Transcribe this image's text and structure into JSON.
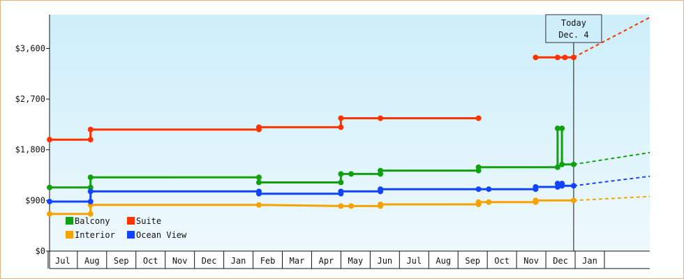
{
  "chart_data": {
    "type": "line",
    "title": "",
    "xlabel": "",
    "ylabel": "",
    "ylim": [
      0,
      4200
    ],
    "yticks": [
      {
        "value": 0,
        "label": "$0"
      },
      {
        "value": 900,
        "label": "$900"
      },
      {
        "value": 1800,
        "label": "$1,800"
      },
      {
        "value": 2700,
        "label": "$2,700"
      },
      {
        "value": 3600,
        "label": "$3,600"
      }
    ],
    "months": [
      "Jul",
      "Aug",
      "Sep",
      "Oct",
      "Nov",
      "Dec",
      "Jan",
      "Feb",
      "Mar",
      "Apr",
      "May",
      "Jun",
      "Jul",
      "Aug",
      "Sep",
      "Oct",
      "Nov",
      "Dec",
      "Jan"
    ],
    "today": {
      "line1": "Today",
      "line2": "Dec. 4",
      "x": 17.45
    },
    "xrange": [
      -0.45,
      20.05
    ],
    "grid": "none",
    "legend_position": "bottom-left",
    "colors": {
      "background_top": "#cdeefa",
      "background_bottom": "#eef9fd",
      "frame": "#e3b27e",
      "axis": "#111111"
    },
    "series": [
      {
        "name": "Balcony",
        "color": "#10a010",
        "points": [
          [
            -0.45,
            1130
          ],
          [
            0.95,
            1130
          ],
          [
            0.95,
            1310
          ],
          [
            6.7,
            1310
          ],
          [
            6.7,
            1220
          ],
          [
            9.5,
            1220
          ],
          [
            9.5,
            1370
          ],
          [
            9.85,
            1370
          ],
          [
            10.85,
            1370
          ],
          [
            10.85,
            1430
          ],
          [
            14.2,
            1430
          ],
          [
            14.2,
            1490
          ],
          [
            16.9,
            1490
          ],
          [
            16.9,
            2180
          ],
          [
            17.05,
            2180
          ],
          [
            17.05,
            1540
          ],
          [
            17.45,
            1540
          ]
        ],
        "projection": [
          [
            17.45,
            1540
          ],
          [
            20.05,
            1750
          ]
        ]
      },
      {
        "name": "Suite",
        "color": "#ff3300",
        "points": [
          [
            -0.45,
            1980
          ],
          [
            0.95,
            1980
          ],
          [
            0.95,
            2160
          ],
          [
            6.7,
            2160
          ],
          [
            6.7,
            2200
          ],
          [
            9.5,
            2200
          ],
          [
            9.5,
            2360
          ],
          [
            10.85,
            2360
          ],
          [
            14.2,
            2360
          ]
        ],
        "segments": [
          [
            [
              16.15,
              3440
            ],
            [
              16.9,
              3440
            ],
            [
              17.15,
              3440
            ],
            [
              17.45,
              3440
            ]
          ]
        ],
        "projection": [
          [
            17.45,
            3440
          ],
          [
            20.05,
            4150
          ]
        ]
      },
      {
        "name": "Interior",
        "color": "#f5a300",
        "points": [
          [
            -0.45,
            660
          ],
          [
            0.95,
            660
          ],
          [
            0.95,
            820
          ],
          [
            6.7,
            820
          ],
          [
            9.5,
            800
          ],
          [
            9.85,
            800
          ],
          [
            10.85,
            800
          ],
          [
            10.85,
            830
          ],
          [
            14.2,
            830
          ],
          [
            14.2,
            870
          ],
          [
            14.55,
            870
          ],
          [
            16.15,
            870
          ],
          [
            16.15,
            900
          ],
          [
            17.45,
            900
          ]
        ],
        "projection": [
          [
            17.45,
            900
          ],
          [
            20.05,
            970
          ]
        ]
      },
      {
        "name": "Ocean View",
        "color": "#1144ff",
        "points": [
          [
            -0.45,
            880
          ],
          [
            0.95,
            880
          ],
          [
            0.95,
            1060
          ],
          [
            6.7,
            1060
          ],
          [
            6.7,
            1020
          ],
          [
            9.5,
            1020
          ],
          [
            9.5,
            1060
          ],
          [
            10.85,
            1060
          ],
          [
            10.85,
            1100
          ],
          [
            14.2,
            1100
          ],
          [
            14.55,
            1100
          ],
          [
            16.15,
            1100
          ],
          [
            16.15,
            1140
          ],
          [
            16.9,
            1140
          ],
          [
            16.9,
            1200
          ],
          [
            17.05,
            1200
          ],
          [
            17.05,
            1160
          ],
          [
            17.45,
            1160
          ]
        ],
        "projection": [
          [
            17.45,
            1160
          ],
          [
            20.05,
            1330
          ]
        ]
      }
    ],
    "legend": [
      {
        "label": "Balcony",
        "color": "#10a010"
      },
      {
        "label": "Suite",
        "color": "#ff3300"
      },
      {
        "label": "Interior",
        "color": "#f5a300"
      },
      {
        "label": "Ocean View",
        "color": "#1144ff"
      }
    ]
  }
}
